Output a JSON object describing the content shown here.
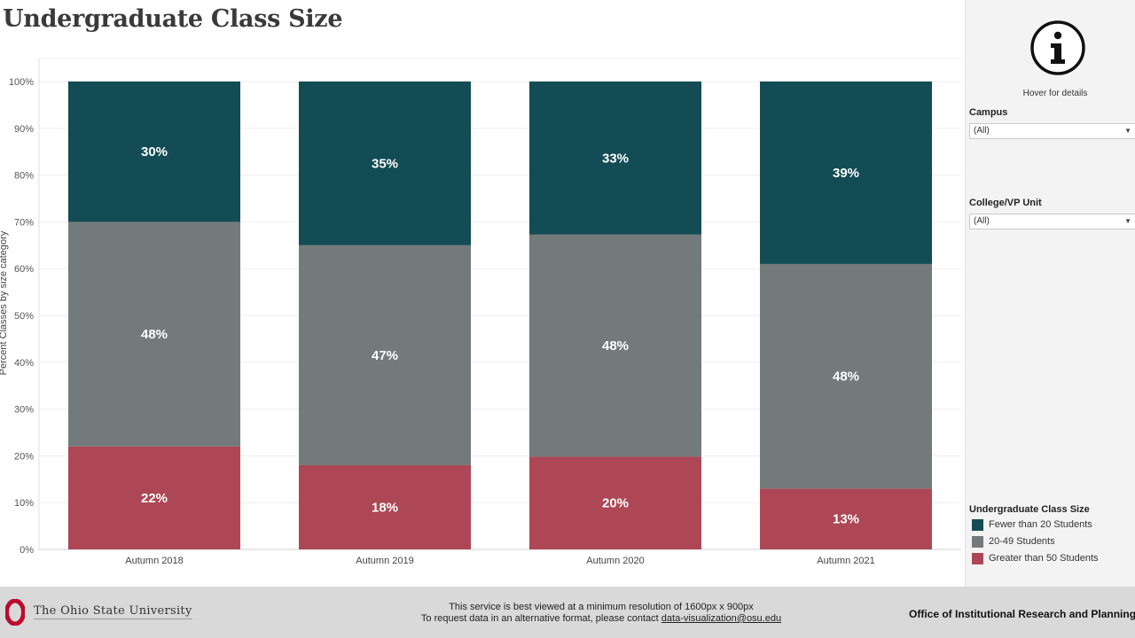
{
  "title": "Undergraduate Class Size",
  "chart_data": {
    "type": "bar",
    "stacked": true,
    "title": "Undergraduate Class Size",
    "ylabel": "Percent Classes by size category",
    "xlabel": "",
    "ylim": [
      0,
      100
    ],
    "yticks": [
      "0%",
      "10%",
      "20%",
      "30%",
      "40%",
      "50%",
      "60%",
      "70%",
      "80%",
      "90%",
      "100%"
    ],
    "categories": [
      "Autumn 2018",
      "Autumn 2019",
      "Autumn 2020",
      "Autumn 2021"
    ],
    "series": [
      {
        "name": "Greater than 50 Students",
        "color": "#ad4756",
        "values": [
          22,
          18,
          20,
          13
        ],
        "labels": [
          "22%",
          "18%",
          "20%",
          "13%"
        ]
      },
      {
        "name": "20-49 Students",
        "color": "#737a7b",
        "values": [
          48,
          47,
          48,
          48
        ],
        "labels": [
          "48%",
          "47%",
          "48%",
          "48%"
        ]
      },
      {
        "name": "Fewer than 20 Students",
        "color": "#134c54",
        "values": [
          30,
          35,
          33,
          39
        ],
        "labels": [
          "30%",
          "35%",
          "33%",
          "39%"
        ]
      }
    ],
    "grid": true,
    "legend_position": "bottom-right"
  },
  "sidebar": {
    "info_icon": "info-icon",
    "hover_text": "Hover for details",
    "campus_label": "Campus",
    "campus_value": "(All)",
    "college_label": "College/VP Unit",
    "college_value": "(All)",
    "legend_title": "Undergraduate Class Size",
    "legend_items": [
      {
        "label": "Fewer than 20 Students",
        "color": "#134c54"
      },
      {
        "label": "20-49 Students",
        "color": "#737a7b"
      },
      {
        "label": "Greater than 50 Students",
        "color": "#ad4756"
      }
    ]
  },
  "footer": {
    "university": "The Ohio State University",
    "logo_color": "#ba0c2f",
    "line1": "This service is best viewed at a minimum resolution of 1600px x 900px",
    "line2_prefix": "To request data in an alternative format, please contact ",
    "email": "data-visualization@osu.edu",
    "office": "Office of Institutional Research and Planning"
  }
}
